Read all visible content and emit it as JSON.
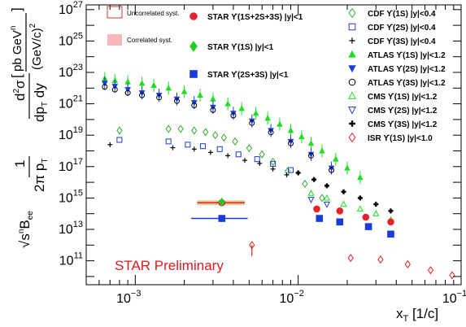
{
  "chart_data": {
    "type": "scatter",
    "xscale": "log",
    "yscale": "log",
    "xlim": [
      0.0005,
      0.1
    ],
    "ylim": [
      3000000000.0,
      2e+27
    ],
    "xlabel": "x_T [1/c]",
    "ylabel": "√s^n B_ee (1/2π p_T) d²σ/(dp_T dy) [pb GeV^n/(GeV/c)²]",
    "x_ticks": [
      {
        "value": 0.001,
        "base": "10",
        "exp": "−3"
      },
      {
        "value": 0.01,
        "base": "10",
        "exp": "−2"
      },
      {
        "value": 0.1,
        "base": "10",
        "exp": "−1"
      }
    ],
    "y_ticks": [
      {
        "value": 100000000000.0,
        "base": "10",
        "exp": "11"
      },
      {
        "value": 10000000000000.0,
        "base": "10",
        "exp": "13"
      },
      {
        "value": 1000000000000000.0,
        "base": "10",
        "exp": "15"
      },
      {
        "value": 1e+17,
        "base": "10",
        "exp": "17"
      },
      {
        "value": 1e+19,
        "base": "10",
        "exp": "19"
      },
      {
        "value": 1e+21,
        "base": "10",
        "exp": "21"
      },
      {
        "value": 1e+23,
        "base": "10",
        "exp": "23"
      },
      {
        "value": 1e+25,
        "base": "10",
        "exp": "25"
      },
      {
        "value": 1e+27,
        "base": "10",
        "exp": "27"
      }
    ],
    "annotation": "STAR Preliminary",
    "legend_left": [
      {
        "label": "Uncorrelated syst.",
        "style": "box-outline"
      },
      {
        "label": "Correlated syst.",
        "style": "box-filled"
      }
    ],
    "series": [
      {
        "name": "STAR ϒ(1S+2S+3S) |y|<1",
        "marker": "circle-filled",
        "color": "#e8202a",
        "x": [
          0.0034
        ],
        "y": [
          500000000000000.0
        ],
        "xerr_lo": [
          0.001
        ],
        "xerr_hi": [
          0.0013
        ]
      },
      {
        "name": "STAR ϒ(1S) |y|<1",
        "marker": "diamond-filled",
        "color": "#22cc22",
        "x": [
          0.0034
        ],
        "y": [
          550000000000000.0
        ]
      },
      {
        "name": "STAR ϒ(2S+3S) |y|<1",
        "marker": "square-filled",
        "color": "#1b3bd8",
        "x": [
          0.0034
        ],
        "y": [
          50000000000000.0
        ],
        "xerr_lo": [
          0.0012
        ],
        "xerr_hi": [
          0.0015
        ],
        "yerr_lo": [
          20000000000000.0
        ],
        "yerr_hi": [
          20000000000000.0
        ]
      },
      {
        "name": "CDF ϒ(1S) |y|<0.4",
        "marker": "diamond-open",
        "color": "#33aa33",
        "x": [
          0.0008,
          0.0016,
          0.0019,
          0.0023,
          0.0027,
          0.0031,
          0.0035,
          0.0041,
          0.005,
          0.006,
          0.007,
          0.0086,
          0.011,
          0.014
        ],
        "y": [
          2e+19,
          2.5e+19,
          2.5e+19,
          2e+19,
          1.6e+19,
          1e+19,
          7e+18,
          4e+18,
          1.5e+18,
          6e+17,
          2e+17,
          5e+16,
          8000000000000000.0,
          1000000000000000.0
        ]
      },
      {
        "name": "CDF ϒ(2S) |y|<0.4",
        "marker": "square-open",
        "color": "#1b3bd8",
        "x": [
          0.0008,
          0.0016,
          0.0021,
          0.0026,
          0.0033,
          0.0043,
          0.0056,
          0.007,
          0.009
        ],
        "y": [
          5e+18,
          4e+18,
          2.5e+18,
          2e+18,
          1.3e+18,
          6e+17,
          3e+17,
          1.5e+17,
          6e+16
        ]
      },
      {
        "name": "CDF ϒ(3S) |y|<0.4",
        "marker": "plus-open",
        "color": "#000000",
        "x": [
          0.0007,
          0.0017,
          0.0023,
          0.0029,
          0.0037,
          0.0047,
          0.0058,
          0.007,
          0.0085
        ],
        "y": [
          2.5e+18,
          1.6e+18,
          1.3e+18,
          8e+17,
          5e+17,
          2.5e+17,
          1.6e+17,
          7e+16,
          3e+16
        ]
      },
      {
        "name": "ATLAS ϒ(1S) |y|<1.2",
        "marker": "triangle-up-filled",
        "color": "#22dd22",
        "x": [
          0.00065,
          0.00075,
          0.0009,
          0.0011,
          0.0013,
          0.0016,
          0.002,
          0.0025,
          0.003,
          0.0037,
          0.0045,
          0.0055,
          0.0065,
          0.0077,
          0.009,
          0.0105,
          0.012,
          0.014,
          0.017,
          0.02,
          0.024
        ],
        "y": [
          4e+22,
          3e+22,
          2.5e+22,
          2e+22,
          1.5e+22,
          1e+22,
          6e+21,
          3.5e+21,
          2e+21,
          1e+21,
          5e+20,
          2.5e+20,
          1.2e+20,
          5e+19,
          2e+19,
          8e+18,
          3e+18,
          1e+18,
          3e+17,
          8e+16,
          2e+16
        ]
      },
      {
        "name": "ATLAS ϒ(2S) |y|<1.2",
        "marker": "triangle-down-filled",
        "color": "#1b3bd8",
        "x": [
          0.00065,
          0.00075,
          0.0009,
          0.0011,
          0.0014,
          0.0018,
          0.0023,
          0.003,
          0.004,
          0.0052,
          0.0068,
          0.009,
          0.012,
          0.016
        ],
        "y": [
          2e+22,
          1.3e+22,
          8e+21,
          5e+21,
          3.5e+21,
          2e+21,
          1.2e+21,
          6e+20,
          2.5e+20,
          8e+19,
          2e+19,
          4e+18,
          6e+17,
          8e+16
        ]
      },
      {
        "name": "ATLAS ϒ(3S) |y|<1.2",
        "marker": "circle-open",
        "color": "#000000",
        "x": [
          0.00065,
          0.00075,
          0.0009,
          0.0011,
          0.0014,
          0.0018,
          0.0023,
          0.003,
          0.004,
          0.0052,
          0.0068,
          0.009,
          0.012,
          0.016
        ],
        "y": [
          1.2e+22,
          8e+21,
          5e+21,
          3.5e+21,
          2.5e+21,
          1.5e+21,
          8e+20,
          4e+20,
          1.8e+20,
          6e+19,
          1.5e+19,
          3e+18,
          5e+17,
          6e+16
        ]
      },
      {
        "name": "CMS ϒ(1S) |y|<1.2",
        "marker": "triangle-up-open",
        "color": "#22dd22",
        "x": [
          0.012,
          0.015,
          0.019,
          0.024,
          0.03,
          0.037
        ],
        "y": [
          2000000000000000.0,
          1000000000000000.0,
          400000000000000.0,
          200000000000000.0,
          100000000000000.0,
          40000000000000.0
        ]
      },
      {
        "name": "CMS ϒ(2S) |y|<1.2",
        "marker": "triangle-down-open",
        "color": "#1b3bd8",
        "x": [
          0.012,
          0.015
        ],
        "y": [
          800000000000000.0,
          400000000000000.0
        ]
      },
      {
        "name": "CMS ϒ(3S) |y|<1.2",
        "marker": "plus-bold",
        "color": "#000000",
        "x": [
          0.01,
          0.0125,
          0.015,
          0.019,
          0.024,
          0.03,
          0.037
        ],
        "y": [
          4e+16,
          1.5e+16,
          6000000000000000.0,
          2500000000000000.0,
          1000000000000000.0,
          400000000000000.0,
          150000000000000.0
        ]
      },
      {
        "name": "ISR ϒ(1S) |y|<1.0",
        "marker": "diamond-open",
        "color": "#dd2222",
        "x": [
          0.0052,
          0.021,
          0.032,
          0.047,
          0.065,
          0.088
        ],
        "y": [
          1000000000000.0,
          150000000000.0,
          120000000000.0,
          60000000000.0,
          25000000000.0,
          12000000000.0
        ],
        "yerr_lo": [
          800000000000.0,
          0,
          0,
          0,
          0,
          0
        ],
        "yerr_hi": [
          0,
          0,
          0,
          0,
          0,
          0
        ]
      }
    ],
    "star_points": [
      {
        "series": 0,
        "x": 0.0034,
        "y": 500000000000000.0
      },
      {
        "series": 2,
        "x": 0.0034,
        "y": 50000000000000.0
      },
      {
        "series": 0,
        "x": 0.013,
        "y": 200000000000000.0
      },
      {
        "series": 2,
        "x": 0.0135,
        "y": 50000000000000.0
      },
      {
        "series": 0,
        "x": 0.018,
        "y": 150000000000000.0
      },
      {
        "series": 2,
        "x": 0.018,
        "y": 30000000000000.0
      },
      {
        "series": 0,
        "x": 0.026,
        "y": 60000000000000.0
      },
      {
        "series": 2,
        "x": 0.027,
        "y": 15000000000000.0
      },
      {
        "series": 0,
        "x": 0.037,
        "y": 30000000000000.0
      },
      {
        "series": 2,
        "x": 0.037,
        "y": 5000000000000.0
      }
    ]
  }
}
